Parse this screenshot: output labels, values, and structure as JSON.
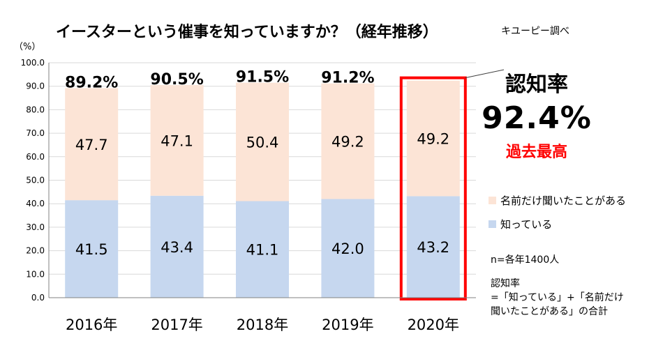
{
  "title": "イースターという催事を知っていますか？（経年推移）",
  "source": "キユーピー調べ",
  "unit": "（%）",
  "colors": {
    "known": "#c6d7ef",
    "heard": "#fce4d6",
    "highlight": "#ff0000",
    "grid": "#d9d9d9",
    "axis": "#808080"
  },
  "chart_data": {
    "type": "bar",
    "stacked": true,
    "categories": [
      "2016年",
      "2017年",
      "2018年",
      "2019年",
      "2020年"
    ],
    "series": [
      {
        "name": "知っている",
        "values": [
          41.5,
          43.4,
          41.1,
          42.0,
          43.2
        ]
      },
      {
        "name": "名前だけ聞いたことがある",
        "values": [
          47.7,
          47.1,
          50.4,
          49.2,
          49.2
        ]
      }
    ],
    "totals": [
      "89.2%",
      "90.5%",
      "91.5%",
      "91.2%",
      ""
    ],
    "ylim": [
      0,
      100
    ],
    "yticks": [
      "0.0",
      "10.0",
      "20.0",
      "30.0",
      "40.0",
      "50.0",
      "60.0",
      "70.0",
      "80.0",
      "90.0",
      "100.0"
    ],
    "legend_position": "right",
    "highlight_category": "2020年"
  },
  "callout": {
    "label": "認知率",
    "value": "92.4%",
    "note": "過去最高"
  },
  "legend": {
    "heard": "名前だけ聞いたことがある",
    "known": "知っている"
  },
  "notes": {
    "sample": "n=各年1400人",
    "definition_title": "認知率",
    "definition_line1": "=「知っている」+「名前だけ",
    "definition_line2": "聞いたことがある」の合計"
  }
}
